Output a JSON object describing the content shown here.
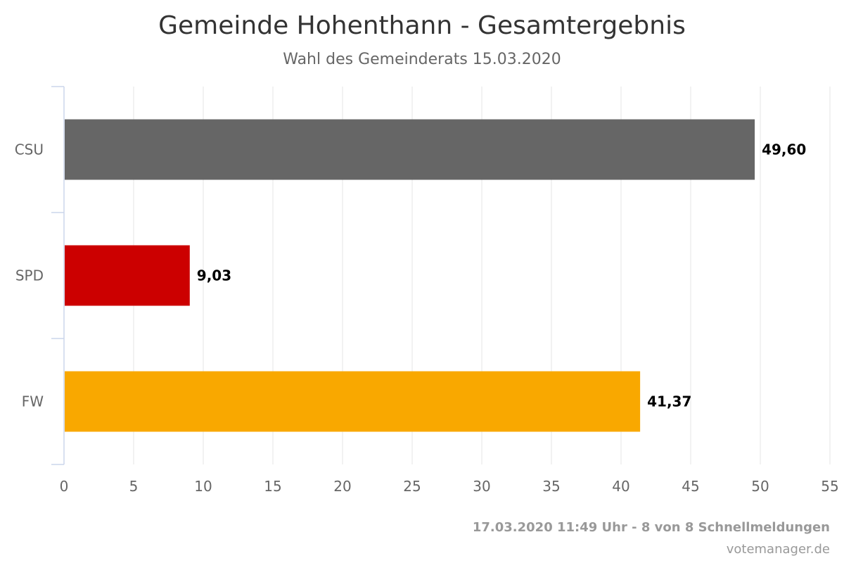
{
  "chart_data": {
    "type": "bar",
    "orientation": "horizontal",
    "title": "Gemeinde Hohenthann - Gesamtergebnis",
    "subtitle": "Wahl des Gemeinderats 15.03.2020",
    "categories": [
      "CSU",
      "SPD",
      "FW"
    ],
    "values": [
      49.6,
      9.03,
      41.37
    ],
    "data_labels": [
      "49,60",
      "9,03",
      "41,37"
    ],
    "colors": [
      "#666666",
      "#cc0000",
      "#f9a800"
    ],
    "xlim": [
      0,
      55
    ],
    "x_ticks": [
      0,
      5,
      10,
      15,
      20,
      25,
      30,
      35,
      40,
      45,
      50,
      55
    ],
    "grid": true,
    "legend": "none"
  },
  "footer": {
    "status": "17.03.2020 11:49 Uhr - 8 von 8 Schnellmeldungen",
    "credit": "votemanager.de"
  }
}
